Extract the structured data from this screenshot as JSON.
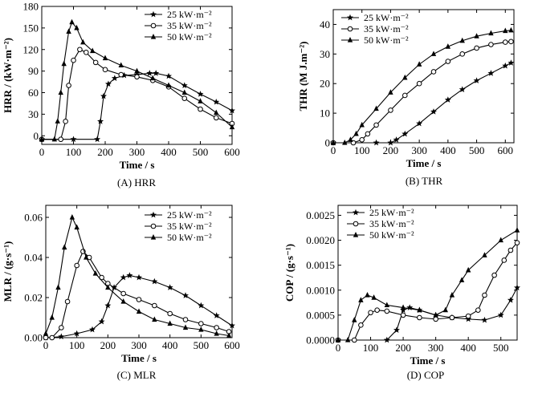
{
  "legend_labels": [
    "25 kW·m⁻²",
    "35 kW·m⁻²",
    "50 kW·m⁻²"
  ],
  "chart_data": [
    {
      "id": "hrr",
      "type": "line",
      "caption": "(A) HRR",
      "xlabel": "Time / s",
      "ylabel": "HRR / (kW·m⁻²)",
      "xlim": [
        0,
        600
      ],
      "ylim": [
        -12,
        180
      ],
      "xticks": [
        0,
        100,
        200,
        300,
        400,
        500,
        600
      ],
      "yticks": [
        0,
        30,
        60,
        90,
        120,
        150,
        180
      ],
      "legend": "top-right",
      "series": [
        {
          "name": "25 kW·m⁻²",
          "marker": "star",
          "x": [
            0,
            100,
            175,
            185,
            195,
            210,
            230,
            260,
            300,
            340,
            360,
            400,
            450,
            500,
            550,
            600
          ],
          "y": [
            -5,
            -5,
            -5,
            20,
            55,
            72,
            80,
            84,
            85,
            87,
            87,
            83,
            70,
            58,
            47,
            35
          ]
        },
        {
          "name": "35 kW·m⁻²",
          "marker": "circle",
          "x": [
            0,
            60,
            75,
            85,
            100,
            120,
            140,
            170,
            200,
            250,
            300,
            350,
            400,
            450,
            500,
            550,
            600
          ],
          "y": [
            -5,
            -5,
            20,
            70,
            105,
            120,
            116,
            102,
            92,
            85,
            82,
            77,
            68,
            52,
            37,
            25,
            17
          ]
        },
        {
          "name": "50 kW·m⁻²",
          "marker": "triangle",
          "x": [
            0,
            40,
            50,
            60,
            70,
            85,
            95,
            110,
            130,
            160,
            200,
            250,
            300,
            350,
            400,
            450,
            500,
            550,
            600
          ],
          "y": [
            -5,
            -5,
            20,
            60,
            100,
            145,
            158,
            150,
            130,
            118,
            108,
            98,
            90,
            80,
            70,
            60,
            48,
            32,
            12
          ]
        }
      ]
    },
    {
      "id": "thr",
      "type": "line",
      "caption": "(B) THR",
      "xlabel": "Time / s",
      "ylabel": "THR (M J.m⁻²)",
      "xlim": [
        0,
        630
      ],
      "ylim": [
        0,
        45
      ],
      "xticks": [
        0,
        100,
        200,
        300,
        400,
        500,
        600
      ],
      "yticks": [
        0,
        10,
        20,
        30,
        40
      ],
      "legend": "top-left",
      "series": [
        {
          "name": "25 kW·m⁻²",
          "marker": "star",
          "x": [
            0,
            150,
            200,
            220,
            250,
            300,
            350,
            400,
            450,
            500,
            550,
            600,
            620
          ],
          "y": [
            0,
            0,
            0,
            1,
            3,
            6.5,
            10.5,
            14.5,
            18,
            21,
            23.5,
            26,
            27
          ]
        },
        {
          "name": "35 kW·m⁻²",
          "marker": "circle",
          "x": [
            0,
            70,
            100,
            120,
            150,
            200,
            250,
            300,
            350,
            400,
            450,
            500,
            550,
            600,
            620
          ],
          "y": [
            0,
            0,
            1,
            3,
            6,
            11,
            16,
            20,
            24,
            27.5,
            30,
            32,
            33.2,
            34,
            34.2
          ]
        },
        {
          "name": "50 kW·m⁻²",
          "marker": "triangle",
          "x": [
            0,
            40,
            60,
            80,
            100,
            150,
            200,
            250,
            300,
            350,
            400,
            450,
            500,
            550,
            600,
            620
          ],
          "y": [
            0,
            0,
            1,
            3,
            6,
            11.5,
            17,
            22,
            26.5,
            30,
            32.5,
            34.5,
            36,
            37,
            37.8,
            38
          ]
        }
      ]
    },
    {
      "id": "mlr",
      "type": "line",
      "caption": "(C) MLR",
      "xlabel": "Time / s",
      "ylabel": "MLR / (g·s⁻¹)",
      "xlim": [
        0,
        600
      ],
      "ylim": [
        0,
        0.066
      ],
      "xticks": [
        0,
        100,
        200,
        300,
        400,
        500,
        600
      ],
      "yticks": [
        0.0,
        0.02,
        0.04,
        0.06
      ],
      "ytick_labels": [
        "0.00",
        "0.02",
        "0.04",
        "0.06"
      ],
      "legend": "top-right",
      "series": [
        {
          "name": "25 kW·m⁻²",
          "marker": "star",
          "x": [
            0,
            50,
            100,
            150,
            180,
            200,
            220,
            250,
            270,
            300,
            350,
            400,
            450,
            500,
            550,
            600
          ],
          "y": [
            0,
            0.0005,
            0.002,
            0.004,
            0.008,
            0.016,
            0.025,
            0.03,
            0.031,
            0.03,
            0.028,
            0.025,
            0.021,
            0.016,
            0.011,
            0.006
          ]
        },
        {
          "name": "35 kW·m⁻²",
          "marker": "circle",
          "x": [
            0,
            20,
            50,
            70,
            100,
            120,
            140,
            180,
            200,
            250,
            300,
            350,
            400,
            450,
            500,
            550,
            590
          ],
          "y": [
            0,
            0,
            0.005,
            0.018,
            0.036,
            0.043,
            0.04,
            0.03,
            0.027,
            0.022,
            0.019,
            0.016,
            0.012,
            0.009,
            0.007,
            0.005,
            0.003
          ]
        },
        {
          "name": "50 kW·m⁻²",
          "marker": "triangle",
          "x": [
            0,
            20,
            40,
            60,
            85,
            100,
            130,
            160,
            200,
            250,
            300,
            350,
            400,
            450,
            500,
            550,
            590
          ],
          "y": [
            0.002,
            0.01,
            0.025,
            0.045,
            0.06,
            0.055,
            0.04,
            0.032,
            0.025,
            0.018,
            0.013,
            0.009,
            0.007,
            0.005,
            0.004,
            0.002,
            0.001
          ]
        }
      ]
    },
    {
      "id": "cop",
      "type": "line",
      "caption": "(D) COP",
      "xlabel": "Time / s",
      "ylabel": "COP / (g·s⁻¹)",
      "xlim": [
        0,
        550
      ],
      "ylim": [
        0,
        0.0027
      ],
      "xticks": [
        0,
        100,
        200,
        300,
        400,
        500
      ],
      "yticks": [
        0.0,
        0.0005,
        0.001,
        0.0015,
        0.002,
        0.0025
      ],
      "ytick_labels": [
        "0.0000",
        "0.0005",
        "0.0010",
        "0.0015",
        "0.0020",
        "0.0025"
      ],
      "legend": "top-left",
      "series": [
        {
          "name": "25 kW·m⁻²",
          "marker": "star",
          "x": [
            0,
            150,
            180,
            200,
            220,
            250,
            300,
            350,
            400,
            450,
            500,
            530,
            550
          ],
          "y": [
            0,
            0,
            0.0002,
            0.0006,
            0.00065,
            0.0006,
            0.0005,
            0.00045,
            0.00042,
            0.0004,
            0.0005,
            0.0008,
            0.00105
          ]
        },
        {
          "name": "35 kW·m⁻²",
          "marker": "circle",
          "x": [
            0,
            50,
            70,
            100,
            120,
            150,
            200,
            250,
            300,
            350,
            400,
            430,
            450,
            480,
            510,
            530,
            550
          ],
          "y": [
            0,
            0,
            0.0003,
            0.00055,
            0.0006,
            0.00058,
            0.0005,
            0.00045,
            0.00042,
            0.00045,
            0.00048,
            0.0006,
            0.0009,
            0.0013,
            0.0016,
            0.0018,
            0.00195
          ]
        },
        {
          "name": "50 kW·m⁻²",
          "marker": "triangle",
          "x": [
            0,
            30,
            50,
            70,
            90,
            110,
            150,
            200,
            250,
            300,
            330,
            350,
            380,
            400,
            450,
            500,
            550
          ],
          "y": [
            0,
            0,
            0.0004,
            0.0008,
            0.0009,
            0.00085,
            0.0007,
            0.00065,
            0.0006,
            0.0005,
            0.0006,
            0.0009,
            0.0012,
            0.0014,
            0.0017,
            0.002,
            0.0022
          ]
        }
      ]
    }
  ]
}
